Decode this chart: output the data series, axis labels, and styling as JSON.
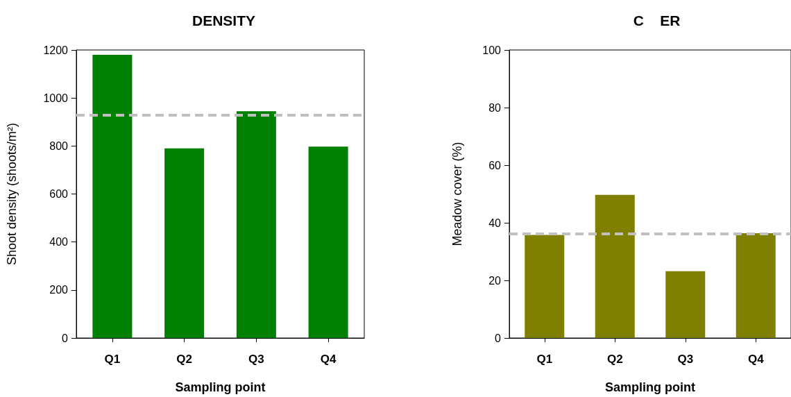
{
  "chart_data": [
    {
      "type": "bar",
      "title": "DENSITY",
      "xlabel": "Sampling point",
      "ylabel": "Shoot density (shoots/m²)",
      "categories": [
        "Q1",
        "Q2",
        "Q3",
        "Q4"
      ],
      "values": [
        1180,
        790,
        945,
        797
      ],
      "color": "#008000",
      "ylim": [
        0,
        1200
      ],
      "yticks": [
        0,
        200,
        400,
        600,
        800,
        1000,
        1200
      ],
      "ref_lines": [
        {
          "axis": "y",
          "value": 930,
          "color": "#c0c0c0",
          "line_style": "dashed"
        }
      ],
      "grid": false
    },
    {
      "type": "bar",
      "title": "C    ER",
      "xlabel": "Sampling point",
      "ylabel": "Meadow cover (%)",
      "categories": [
        "Q1",
        "Q2",
        "Q3",
        "Q4"
      ],
      "values": [
        35.8,
        49.7,
        23.2,
        36.4
      ],
      "color": "#808000",
      "ylim": [
        0,
        100
      ],
      "yticks": [
        0,
        20,
        40,
        60,
        80,
        100
      ],
      "ref_lines": [
        {
          "axis": "y",
          "value": 36.3,
          "color": "#c0c0c0",
          "line_style": "dashed"
        }
      ],
      "grid": false
    }
  ]
}
